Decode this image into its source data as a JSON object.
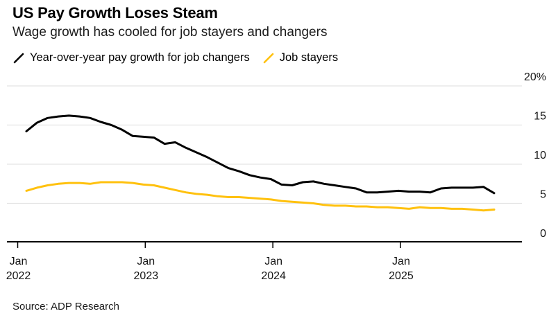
{
  "header": {
    "title": "US Pay Growth Loses Steam",
    "subtitle": "Wage growth has cooled for job stayers and changers"
  },
  "legend": [
    {
      "label": "Year-over-year pay growth for job changers",
      "color": "#000000"
    },
    {
      "label": "Job stayers",
      "color": "#FFC10E"
    }
  ],
  "source": "Source: ADP Research",
  "colors": {
    "changers_line": "#000000",
    "stayers_line": "#FFC10E",
    "gridline": "#E3E3E3",
    "axis": "#000000",
    "axis_text": "#161616"
  },
  "chart_data": {
    "type": "line",
    "title": "US Pay Growth Loses Steam",
    "subtitle": "Wage growth has cooled for job stayers and changers",
    "source": "Source: ADP Research",
    "grid": "horizontal",
    "legend_position": "top",
    "ylim": [
      0,
      20
    ],
    "yticks": [
      {
        "value": 20,
        "label": "20%"
      },
      {
        "value": 15,
        "label": "15"
      },
      {
        "value": 10,
        "label": "10"
      },
      {
        "value": 5,
        "label": "5"
      },
      {
        "value": 0,
        "label": "0"
      }
    ],
    "xticks": [
      {
        "index": 0,
        "line1": "Jan",
        "line2": "2022"
      },
      {
        "index": 12,
        "line1": "Jan",
        "line2": "2023"
      },
      {
        "index": 24,
        "line1": "Jan",
        "line2": "2024"
      },
      {
        "index": 36,
        "line1": "Jan",
        "line2": "2025"
      }
    ],
    "x": [
      "Jan 2022",
      "Feb 2022",
      "Mar 2022",
      "Apr 2022",
      "May 2022",
      "Jun 2022",
      "Jul 2022",
      "Aug 2022",
      "Sep 2022",
      "Oct 2022",
      "Nov 2022",
      "Dec 2022",
      "Jan 2023",
      "Feb 2023",
      "Mar 2023",
      "Apr 2023",
      "May 2023",
      "Jun 2023",
      "Jul 2023",
      "Aug 2023",
      "Sep 2023",
      "Oct 2023",
      "Nov 2023",
      "Dec 2023",
      "Jan 2024",
      "Feb 2024",
      "Mar 2024",
      "Apr 2024",
      "May 2024",
      "Jun 2024",
      "Jul 2024",
      "Aug 2024",
      "Sep 2024",
      "Oct 2024",
      "Nov 2024",
      "Dec 2024",
      "Jan 2025",
      "Feb 2025",
      "Mar 2025",
      "Apr 2025",
      "May 2025",
      "Jun 2025",
      "Jul 2025",
      "Aug 2025",
      "Sep 2025"
    ],
    "series": [
      {
        "name": "Year-over-year pay growth for job changers",
        "color": "#000000",
        "values": [
          14.2,
          15.3,
          15.9,
          16.1,
          16.2,
          16.1,
          15.9,
          15.4,
          15.0,
          14.4,
          13.6,
          13.5,
          13.4,
          12.6,
          12.8,
          12.1,
          11.5,
          10.9,
          10.2,
          9.5,
          9.1,
          8.6,
          8.3,
          8.1,
          7.4,
          7.3,
          7.7,
          7.8,
          7.5,
          7.3,
          7.1,
          6.9,
          6.4,
          6.4,
          6.5,
          6.6,
          6.5,
          6.5,
          6.4,
          6.9,
          7.0,
          7.0,
          7.0,
          7.1,
          6.3
        ]
      },
      {
        "name": "Job stayers",
        "color": "#FFC10E",
        "values": [
          6.6,
          7.0,
          7.3,
          7.5,
          7.6,
          7.6,
          7.5,
          7.7,
          7.7,
          7.7,
          7.6,
          7.4,
          7.3,
          7.0,
          6.7,
          6.4,
          6.2,
          6.1,
          5.9,
          5.8,
          5.8,
          5.7,
          5.6,
          5.5,
          5.3,
          5.2,
          5.1,
          5.0,
          4.8,
          4.7,
          4.7,
          4.6,
          4.6,
          4.5,
          4.5,
          4.4,
          4.3,
          4.5,
          4.4,
          4.4,
          4.3,
          4.3,
          4.2,
          4.1,
          4.2
        ]
      }
    ]
  }
}
